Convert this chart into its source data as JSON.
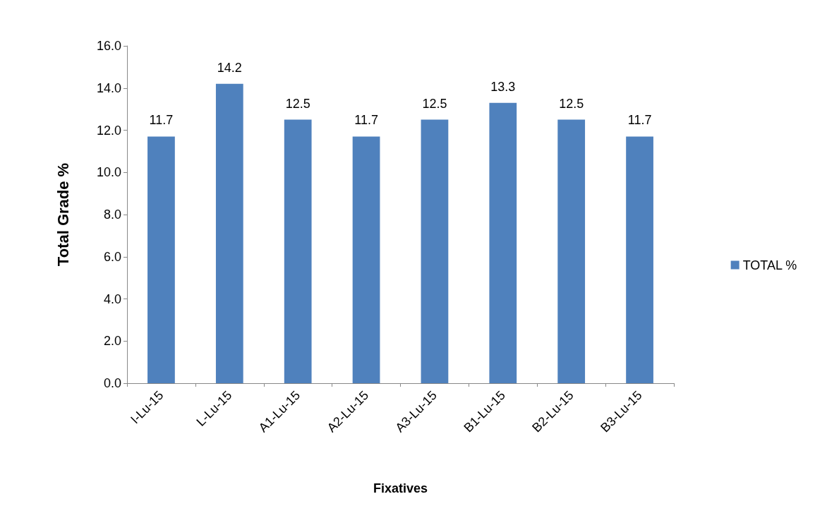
{
  "chart_data": {
    "type": "bar",
    "xlabel": "Fixatives",
    "ylabel": "Total Grade %",
    "categories": [
      "I-Lu-15",
      "L-Lu-15",
      "A1-Lu-15",
      "A2-Lu-15",
      "A3-Lu-15",
      "B1-Lu-15",
      "B2-Lu-15",
      "B3-Lu-15"
    ],
    "series": [
      {
        "name": "TOTAL %",
        "color": "#4f81bd",
        "values": [
          11.7,
          14.2,
          12.5,
          11.7,
          12.5,
          13.3,
          12.5,
          11.7
        ]
      }
    ],
    "ylim": [
      0,
      16
    ],
    "yticks": [
      {
        "value": 0,
        "label": "0.0"
      },
      {
        "value": 2,
        "label": "2.0"
      },
      {
        "value": 4,
        "label": "4.0"
      },
      {
        "value": 6,
        "label": "6.0"
      },
      {
        "value": 8,
        "label": "8.0"
      },
      {
        "value": 10,
        "label": "10.0"
      },
      {
        "value": 12,
        "label": "12.0"
      },
      {
        "value": 14,
        "label": "14.0"
      },
      {
        "value": 16,
        "label": "16.0"
      }
    ],
    "grid": false,
    "legend": "right",
    "data_labels": true
  }
}
